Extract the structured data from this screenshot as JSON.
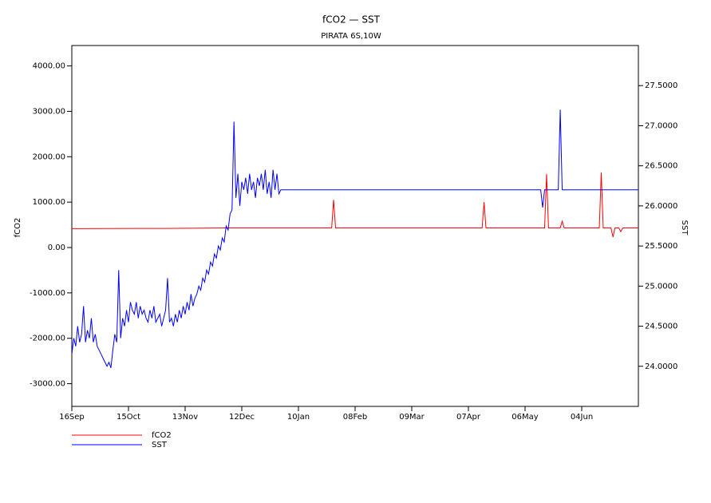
{
  "chart_data": {
    "type": "line",
    "title": "fCO2 — SST",
    "subtitle": "PIRATA 6S,10W",
    "y_label": "fCO2",
    "y2_label": "SST",
    "xlim": [
      0,
      290
    ],
    "xticks": [
      {
        "value": 0,
        "label": "16Sep"
      },
      {
        "value": 29,
        "label": "15Oct"
      },
      {
        "value": 58,
        "label": "13Nov"
      },
      {
        "value": 87,
        "label": "12Dec"
      },
      {
        "value": 116,
        "label": "10Jan"
      },
      {
        "value": 145,
        "label": "08Feb"
      },
      {
        "value": 174,
        "label": "09Mar"
      },
      {
        "value": 203,
        "label": "07Apr"
      },
      {
        "value": 232,
        "label": "06May"
      },
      {
        "value": 261,
        "label": "04Jun"
      }
    ],
    "ylim": [
      -3500,
      4450
    ],
    "yticks": [
      {
        "value": -3000,
        "label": "-3000.00"
      },
      {
        "value": -2000,
        "label": "-2000.00"
      },
      {
        "value": -1000,
        "label": "-1000.00"
      },
      {
        "value": 0,
        "label": "0.00"
      },
      {
        "value": 1000,
        "label": "1000.00"
      },
      {
        "value": 2000,
        "label": "2000.00"
      },
      {
        "value": 3000,
        "label": "3000.00"
      },
      {
        "value": 4000,
        "label": "4000.00"
      }
    ],
    "y2lim": [
      23.5,
      28.0
    ],
    "y2ticks": [
      {
        "value": 24,
        "label": "24.0000"
      },
      {
        "value": 24.5,
        "label": "24.5000"
      },
      {
        "value": 25,
        "label": "25.0000"
      },
      {
        "value": 25.5,
        "label": "25.5000"
      },
      {
        "value": 26,
        "label": "26.0000"
      },
      {
        "value": 26.5,
        "label": "26.5000"
      },
      {
        "value": 27,
        "label": "27.0000"
      },
      {
        "value": 27.5,
        "label": "27.5000"
      }
    ],
    "series": [
      {
        "name": "fCO2",
        "color": "#ff0000",
        "axis": "y",
        "x": [
          0,
          33,
          47,
          80,
          133,
          134,
          135,
          210,
          211,
          212,
          242,
          243,
          244,
          250,
          251,
          252,
          270,
          271,
          272,
          276,
          277,
          278,
          280,
          281,
          282,
          290
        ],
        "values": [
          415,
          420,
          420,
          430,
          430,
          1050,
          430,
          430,
          1000,
          430,
          430,
          1620,
          430,
          430,
          580,
          430,
          430,
          1650,
          430,
          430,
          230,
          430,
          430,
          350,
          430,
          430
        ]
      },
      {
        "name": "SST",
        "color": "#0000ff",
        "axis": "y2",
        "x": [
          0,
          1,
          2,
          3,
          4,
          5,
          6,
          7,
          8,
          9,
          10,
          11,
          12,
          13,
          14,
          15,
          16,
          17,
          18,
          19,
          20,
          21,
          22,
          23,
          24,
          25,
          26,
          27,
          28,
          29,
          30,
          31,
          32,
          33,
          34,
          35,
          36,
          37,
          38,
          39,
          40,
          41,
          42,
          43,
          44,
          45,
          46,
          47,
          48,
          49,
          50,
          51,
          52,
          53,
          54,
          55,
          56,
          57,
          58,
          59,
          60,
          61,
          62,
          63,
          64,
          65,
          66,
          67,
          68,
          69,
          70,
          71,
          72,
          73,
          74,
          75,
          76,
          77,
          78,
          79,
          80,
          81,
          82,
          83,
          84,
          85,
          86,
          87,
          88,
          89,
          90,
          91,
          92,
          93,
          94,
          95,
          96,
          97,
          98,
          99,
          100,
          101,
          102,
          103,
          104,
          105,
          106,
          107,
          240,
          241,
          242,
          249,
          250,
          251,
          290
        ],
        "values": [
          24.15,
          24.35,
          24.25,
          24.5,
          24.3,
          24.4,
          24.75,
          24.3,
          24.45,
          24.35,
          24.6,
          24.3,
          24.4,
          24.25,
          24.2,
          24.15,
          24.1,
          24.05,
          24.0,
          24.05,
          23.98,
          24.2,
          24.4,
          24.3,
          25.2,
          24.35,
          24.6,
          24.5,
          24.7,
          24.55,
          24.8,
          24.7,
          24.65,
          24.8,
          24.6,
          24.75,
          24.65,
          24.7,
          24.6,
          24.55,
          24.7,
          24.6,
          24.75,
          24.55,
          24.6,
          24.65,
          24.5,
          24.6,
          24.7,
          25.1,
          24.55,
          24.6,
          24.5,
          24.65,
          24.55,
          24.7,
          24.6,
          24.75,
          24.65,
          24.8,
          24.7,
          24.9,
          24.75,
          24.85,
          24.9,
          25.0,
          24.95,
          25.1,
          25.05,
          25.2,
          25.15,
          25.3,
          25.25,
          25.4,
          25.35,
          25.5,
          25.45,
          25.6,
          25.55,
          25.75,
          25.7,
          25.9,
          25.95,
          27.05,
          26.1,
          26.4,
          26.0,
          26.3,
          26.2,
          26.35,
          26.15,
          26.4,
          26.2,
          26.3,
          26.1,
          26.35,
          26.25,
          26.4,
          26.2,
          26.45,
          26.15,
          26.3,
          26.1,
          26.45,
          26.2,
          26.4,
          26.15,
          26.2,
          26.2,
          25.98,
          26.2,
          26.2,
          27.2,
          26.2,
          26.2
        ]
      }
    ]
  }
}
